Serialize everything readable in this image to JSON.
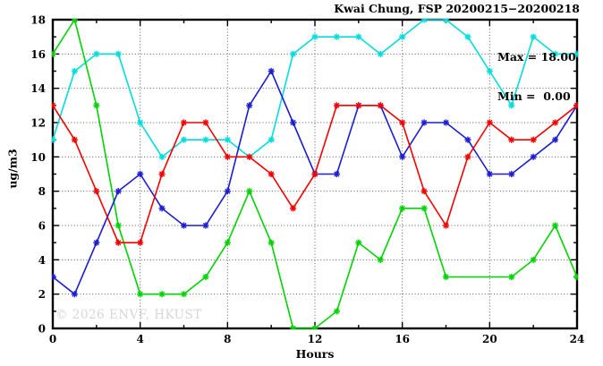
{
  "header": {
    "title": "Kwai Chung, FSP 20200215−20200218"
  },
  "annotation": {
    "line1": "Max = 18.00",
    "line2": "Min =  0.00"
  },
  "watermark": "© 2026 ENVF, HKUST",
  "chart_data": {
    "type": "line",
    "title": "Kwai Chung, FSP 20200215−20200218",
    "xlabel": "Hours",
    "ylabel": "ug/m3",
    "xlim": [
      0,
      24
    ],
    "ylim": [
      0,
      18
    ],
    "x_major_ticks": [
      0,
      4,
      8,
      12,
      16,
      20,
      24
    ],
    "x_minor_step": 2,
    "y_major_ticks": [
      0,
      2,
      4,
      6,
      8,
      10,
      12,
      14,
      16,
      18
    ],
    "y_minor_step": 1,
    "grid": true,
    "grid_style": "dotted",
    "legend": "none",
    "marker": "asterisk",
    "annotations": [
      "Max = 18.00",
      "Min =  0.00"
    ],
    "x": [
      0,
      1,
      2,
      3,
      4,
      5,
      6,
      7,
      8,
      9,
      10,
      11,
      12,
      13,
      14,
      15,
      16,
      17,
      18,
      19,
      20,
      21,
      22,
      23,
      24
    ],
    "series": [
      {
        "name": "cyan-series",
        "color": "#00dcdc",
        "values": [
          11,
          15,
          16,
          16,
          12,
          10,
          11,
          11,
          11,
          10,
          11,
          16,
          17,
          17,
          17,
          16,
          17,
          18,
          18,
          17,
          15,
          13,
          17,
          16,
          16
        ]
      },
      {
        "name": "green-series",
        "color": "#00d300",
        "values": [
          16,
          18,
          13,
          6,
          2,
          2,
          2,
          3,
          5,
          8,
          5,
          0,
          0,
          1,
          5,
          4,
          7,
          7,
          3,
          null,
          null,
          3,
          4,
          6,
          3
        ]
      },
      {
        "name": "blue-series",
        "color": "#1c1cd2",
        "values": [
          3,
          2,
          5,
          8,
          9,
          7,
          6,
          6,
          8,
          13,
          15,
          12,
          9,
          9,
          13,
          13,
          10,
          12,
          12,
          11,
          9,
          9,
          10,
          11,
          13
        ]
      },
      {
        "name": "red-series",
        "color": "#f40000",
        "values": [
          13,
          11,
          8,
          5,
          5,
          9,
          12,
          12,
          10,
          10,
          9,
          7,
          9,
          13,
          13,
          13,
          12,
          8,
          6,
          10,
          12,
          11,
          11,
          12,
          13
        ]
      }
    ]
  }
}
